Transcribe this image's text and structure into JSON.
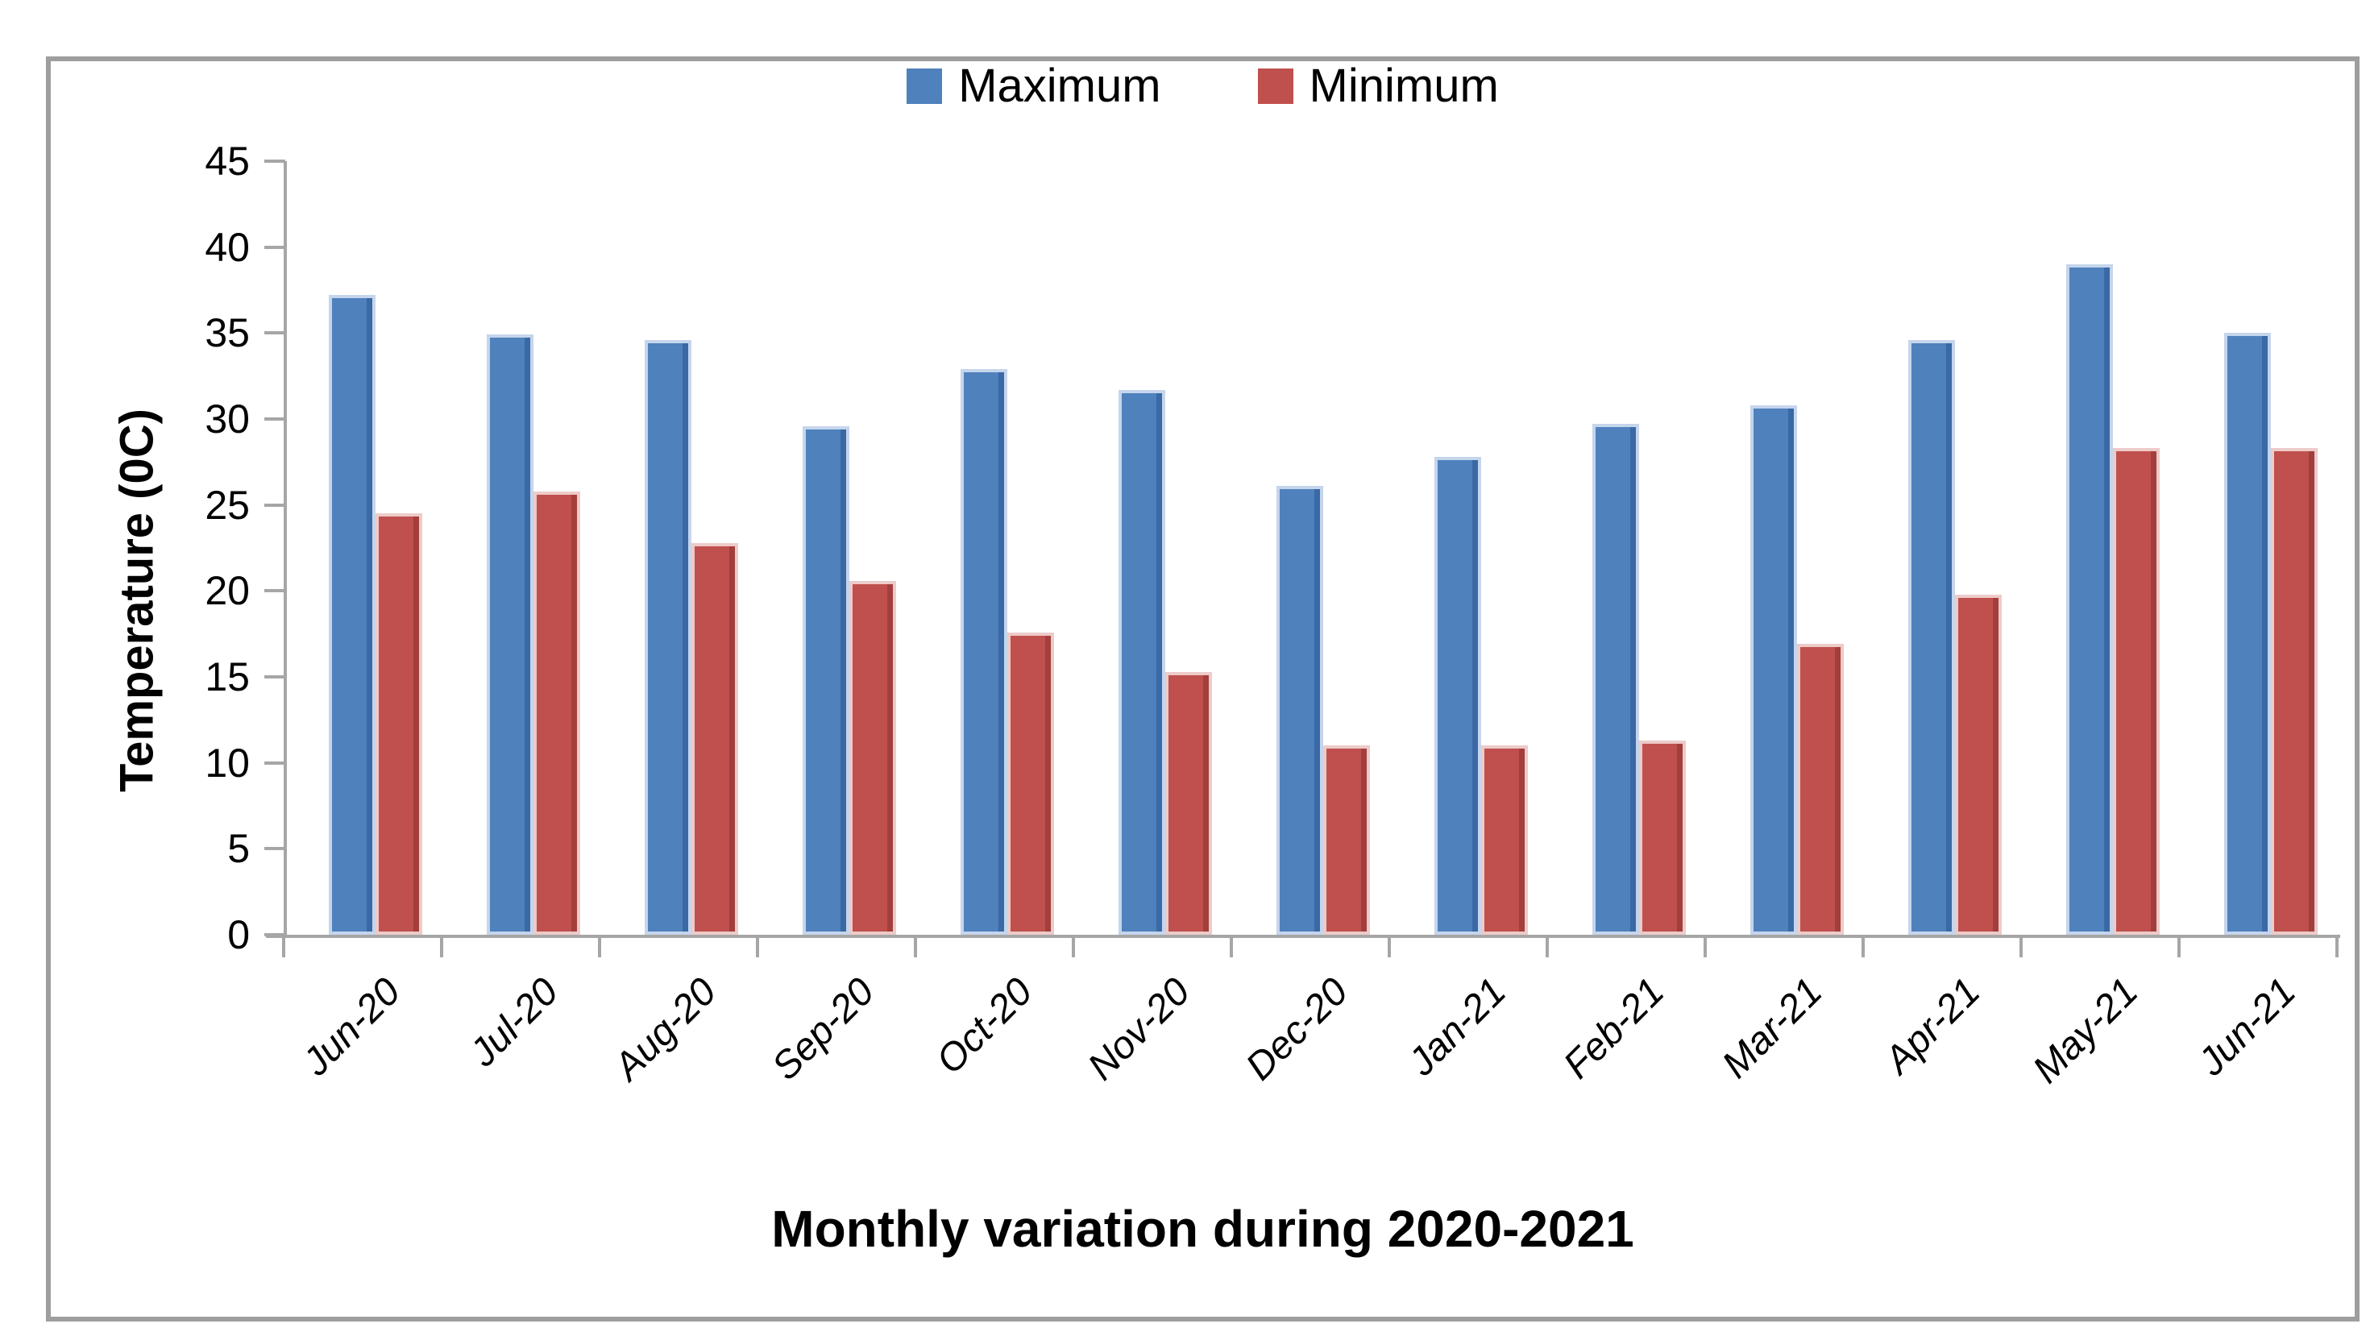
{
  "frame": {
    "border_color": "#9e9e9e",
    "background": "#ffffff"
  },
  "chart_data": {
    "type": "bar",
    "title": "Monthly variation during 2020-2021",
    "xlabel": "Monthly variation during 2020-2021",
    "ylabel": "Temperature (0C)",
    "categories": [
      "Jun-20",
      "Jul-20",
      "Aug-20",
      "Sep-20",
      "Oct-20",
      "Nov-20",
      "Dec-20",
      "Jan-21",
      "Feb-21",
      "Mar-21",
      "Apr-21",
      "May-21",
      "Jun-21"
    ],
    "series": [
      {
        "name": "Maximum",
        "color": "#4F81BD",
        "edge_dark": "#3A69A5",
        "edge_light": "#C5D5EC",
        "values": [
          37.2,
          34.9,
          34.6,
          29.6,
          32.9,
          31.7,
          26.1,
          27.8,
          29.7,
          30.8,
          34.6,
          39.0,
          35.0
        ]
      },
      {
        "name": "Minimum",
        "color": "#C0504D",
        "edge_dark": "#A23F3C",
        "edge_light": "#EDCBC9",
        "values": [
          24.5,
          25.8,
          22.8,
          20.6,
          17.6,
          15.3,
          11.0,
          11.0,
          11.3,
          16.9,
          19.8,
          28.3,
          28.3
        ]
      }
    ],
    "ylim": [
      0,
      45
    ],
    "ytick_step": 5,
    "grid": false,
    "legend_position": "top",
    "axis_color": "#A6A6A6",
    "text_color": "#000000"
  }
}
